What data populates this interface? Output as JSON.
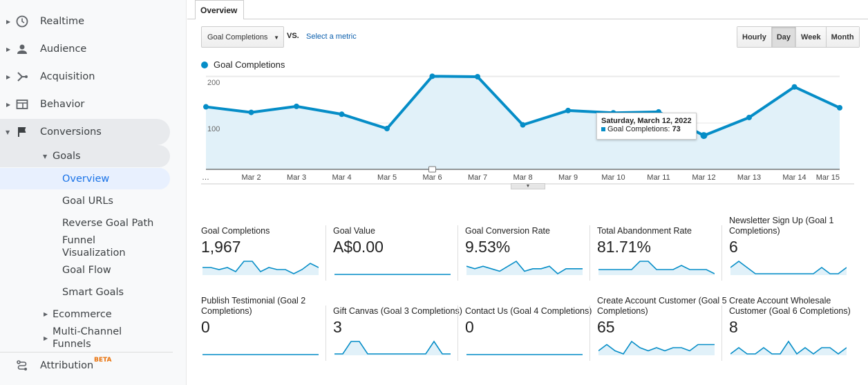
{
  "sidebar": {
    "items": [
      {
        "label": "Realtime",
        "icon": "clock-icon"
      },
      {
        "label": "Audience",
        "icon": "person-icon"
      },
      {
        "label": "Acquisition",
        "icon": "acquisition-icon"
      },
      {
        "label": "Behavior",
        "icon": "behavior-icon"
      },
      {
        "label": "Conversions",
        "icon": "flag-icon"
      }
    ],
    "goals_label": "Goals",
    "goal_items": [
      "Overview",
      "Goal URLs",
      "Reverse Goal Path",
      "Funnel Visualization",
      "Goal Flow",
      "Smart Goals"
    ],
    "ecommerce": "Ecommerce",
    "multichannel": "Multi-Channel Funnels",
    "attribution": "Attribution",
    "beta": "BETA"
  },
  "tab": "Overview",
  "toolbar": {
    "metric": "Goal Completions",
    "vs": "VS.",
    "select_metric": "Select a metric",
    "periods": [
      "Hourly",
      "Day",
      "Week",
      "Month"
    ],
    "active_period": "Day"
  },
  "chart_data": {
    "type": "area",
    "series": [
      {
        "name": "Goal Completions",
        "values": [
          135,
          123,
          136,
          119,
          88,
          201,
          200,
          96,
          127,
          122,
          124,
          73,
          112,
          178,
          133
        ]
      }
    ],
    "categories": [
      "…",
      "Mar 2",
      "Mar 3",
      "Mar 4",
      "Mar 5",
      "Mar 6",
      "Mar 7",
      "Mar 8",
      "Mar 9",
      "Mar 10",
      "Mar 11",
      "Mar 12",
      "Mar 13",
      "Mar 14",
      "Mar 15"
    ],
    "yticks": [
      "100",
      "200"
    ],
    "ylim": [
      0,
      200
    ],
    "color": "#058dc7",
    "grid": true,
    "legend": "top-left"
  },
  "tooltip": {
    "title": "Saturday, March 12, 2022",
    "label": "Goal Completions:",
    "value": "73"
  },
  "metrics": [
    {
      "label": "Goal Completions",
      "value": "1,967",
      "spark": [
        5,
        5,
        4,
        5,
        3,
        8,
        8,
        3,
        5,
        4,
        4,
        2,
        4,
        7,
        5
      ]
    },
    {
      "label": "Goal Value",
      "value": "A$0.00",
      "spark": [
        0,
        0,
        0,
        0,
        0,
        0,
        0,
        0,
        0,
        0,
        0,
        0,
        0,
        0,
        0
      ]
    },
    {
      "label": "Goal Conversion Rate",
      "value": "9.53%",
      "spark": [
        5,
        4,
        5,
        4,
        3,
        5,
        7,
        3,
        4,
        4,
        5,
        2,
        4,
        4,
        4
      ]
    },
    {
      "label": "Total Abandonment Rate",
      "value": "81.71%",
      "spark": [
        6,
        6,
        6,
        6,
        6,
        6.2,
        6.2,
        6,
        6,
        6,
        6.1,
        6,
        6,
        6,
        5.9
      ]
    },
    {
      "label": "Newsletter Sign Up (Goal 1 Completions)",
      "value": "6",
      "spark": [
        1,
        2,
        1,
        0,
        0,
        0,
        0,
        0,
        0,
        0,
        0,
        1,
        0,
        0,
        1
      ]
    },
    {
      "label": "Publish Testimonial (Goal 2 Completions)",
      "value": "0",
      "spark": [
        0,
        0,
        0,
        0,
        0,
        0,
        0,
        0,
        0,
        0,
        0,
        0,
        0,
        0,
        0
      ]
    },
    {
      "label": "Gift Canvas (Goal 3 Completions)",
      "value": "3",
      "spark": [
        0,
        0,
        1,
        1,
        0,
        0,
        0,
        0,
        0,
        0,
        0,
        0,
        1,
        0,
        0
      ]
    },
    {
      "label": "Contact Us (Goal 4 Completions)",
      "value": "0",
      "spark": [
        0,
        0,
        0,
        0,
        0,
        0,
        0,
        0,
        0,
        0,
        0,
        0,
        0,
        0,
        0
      ]
    },
    {
      "label": "Create Account Customer (Goal 5 Completions)",
      "value": "65",
      "spark": [
        3,
        5,
        3,
        2,
        6,
        4,
        3,
        4,
        3,
        4,
        4,
        3,
        5,
        5,
        5
      ]
    },
    {
      "label": "Create Account Wholesale Customer (Goal 6 Completions)",
      "value": "8",
      "spark": [
        0,
        1,
        0,
        0,
        1,
        0,
        0,
        2,
        0,
        1,
        0,
        1,
        1,
        0,
        1
      ]
    }
  ]
}
